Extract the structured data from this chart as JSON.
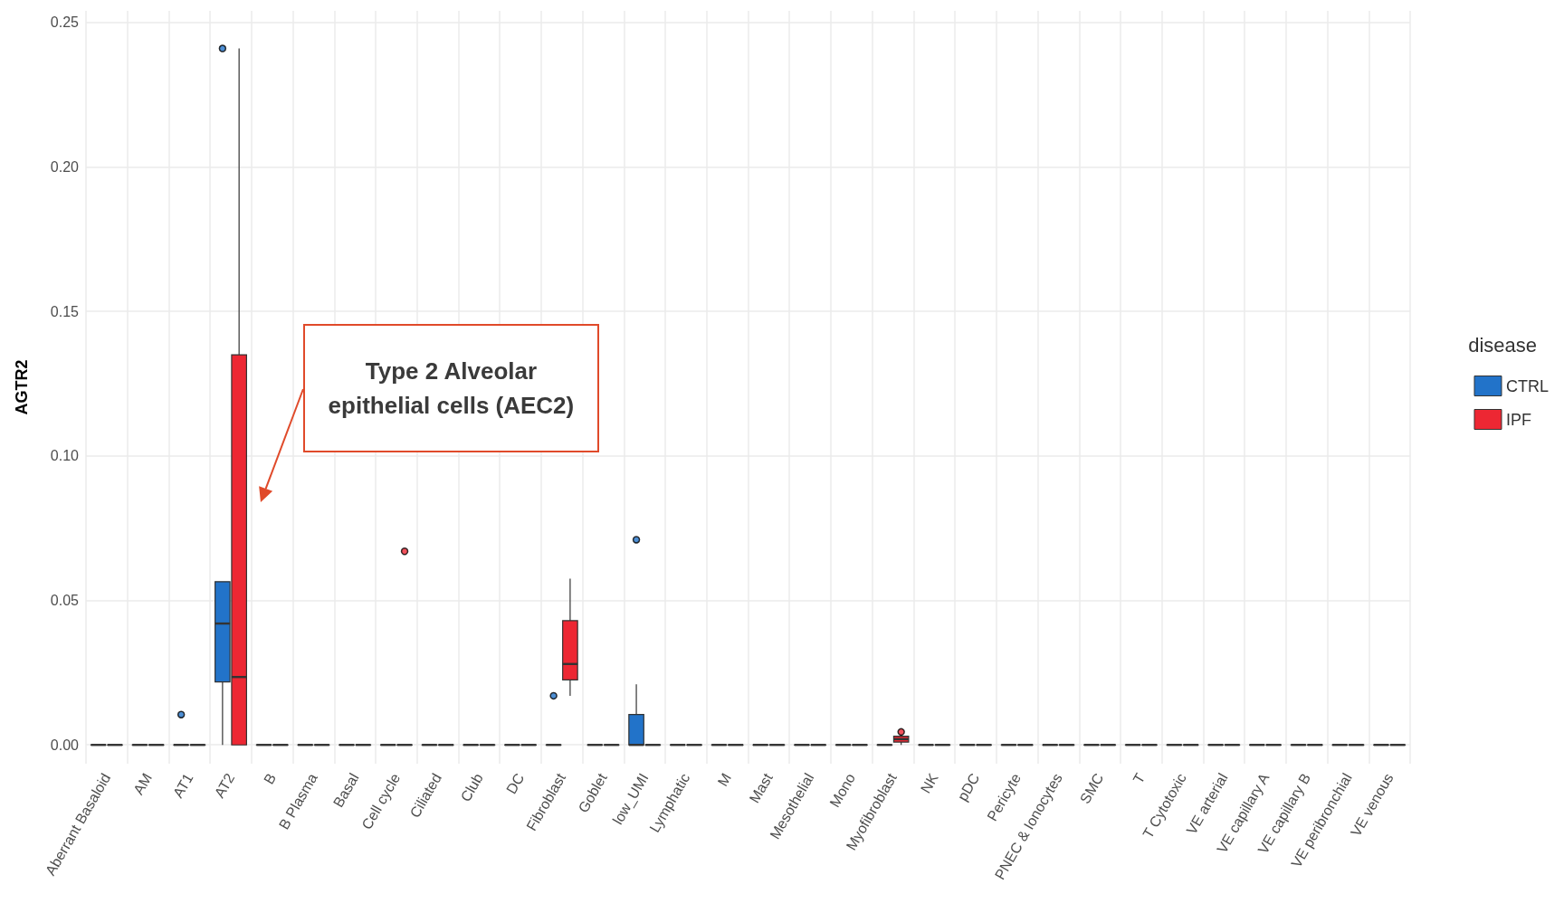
{
  "chart_data": {
    "type": "box",
    "ylabel": "AGTR2",
    "legend_title": "disease",
    "legend": "right",
    "grid": true,
    "categories": [
      "Aberrant Basaloid",
      "AM",
      "AT1",
      "AT2",
      "B",
      "B Plasma",
      "Basal",
      "Cell cycle",
      "Ciliated",
      "Club",
      "DC",
      "Fibroblast",
      "Goblet",
      "low_UMI",
      "Lymphatic",
      "M",
      "Mast",
      "Mesothelial",
      "Mono",
      "Myofibroblast",
      "NK",
      "pDC",
      "Pericyte",
      "PNEC & Ionocytes",
      "SMC",
      "T",
      "T Cytotoxic",
      "VE arterial",
      "VE capillary A",
      "VE capillary B",
      "VE peribronchial",
      "VE venous"
    ],
    "ylim": [
      -0.0065,
      0.254
    ],
    "yticks": [
      {
        "value": 0,
        "label": "0.00"
      },
      {
        "value": 0.05,
        "label": "0.05"
      },
      {
        "value": 0.1,
        "label": "0.10"
      },
      {
        "value": 0.15,
        "label": "0.15"
      },
      {
        "value": 0.2,
        "label": "0.20"
      },
      {
        "value": 0.25,
        "label": "0.25"
      }
    ],
    "annotations": [
      "Type 2 Alveolar epithelial cells (AEC2)"
    ],
    "series": [
      {
        "name": "CTRL",
        "color": "#2273c9",
        "boxes": [
          {
            "low": 0,
            "q1": 0,
            "median": 0,
            "q3": 0,
            "high": 0
          },
          {
            "low": 0,
            "q1": 0,
            "median": 0,
            "q3": 0,
            "high": 0
          },
          {
            "low": 0,
            "q1": 0,
            "median": 0,
            "q3": 0,
            "high": 0,
            "outliers": [
              0.0105
            ]
          },
          {
            "low": 0,
            "q1": 0.0218,
            "median": 0.042,
            "q3": 0.0565,
            "high": 0.0565,
            "outliers": [
              0.241
            ]
          },
          {
            "low": 0,
            "q1": 0,
            "median": 0,
            "q3": 0,
            "high": 0
          },
          {
            "low": 0,
            "q1": 0,
            "median": 0,
            "q3": 0,
            "high": 0
          },
          {
            "low": 0,
            "q1": 0,
            "median": 0,
            "q3": 0,
            "high": 0
          },
          {
            "low": 0,
            "q1": 0,
            "median": 0,
            "q3": 0,
            "high": 0
          },
          {
            "low": 0,
            "q1": 0,
            "median": 0,
            "q3": 0,
            "high": 0
          },
          {
            "low": 0,
            "q1": 0,
            "median": 0,
            "q3": 0,
            "high": 0
          },
          {
            "low": 0,
            "q1": 0,
            "median": 0,
            "q3": 0,
            "high": 0
          },
          {
            "low": 0,
            "q1": 0,
            "median": 0,
            "q3": 0,
            "high": 0,
            "outliers": [
              0.017
            ]
          },
          {
            "low": 0,
            "q1": 0,
            "median": 0,
            "q3": 0,
            "high": 0
          },
          {
            "low": 0,
            "q1": 0,
            "median": 0,
            "q3": 0.0105,
            "high": 0.021,
            "outliers": [
              0.071
            ]
          },
          {
            "low": 0,
            "q1": 0,
            "median": 0,
            "q3": 0,
            "high": 0
          },
          {
            "low": 0,
            "q1": 0,
            "median": 0,
            "q3": 0,
            "high": 0
          },
          {
            "low": 0,
            "q1": 0,
            "median": 0,
            "q3": 0,
            "high": 0
          },
          {
            "low": 0,
            "q1": 0,
            "median": 0,
            "q3": 0,
            "high": 0
          },
          {
            "low": 0,
            "q1": 0,
            "median": 0,
            "q3": 0,
            "high": 0
          },
          {
            "low": 0,
            "q1": 0,
            "median": 0,
            "q3": 0,
            "high": 0
          },
          {
            "low": 0,
            "q1": 0,
            "median": 0,
            "q3": 0,
            "high": 0
          },
          {
            "low": 0,
            "q1": 0,
            "median": 0,
            "q3": 0,
            "high": 0
          },
          {
            "low": 0,
            "q1": 0,
            "median": 0,
            "q3": 0,
            "high": 0
          },
          {
            "low": 0,
            "q1": 0,
            "median": 0,
            "q3": 0,
            "high": 0
          },
          {
            "low": 0,
            "q1": 0,
            "median": 0,
            "q3": 0,
            "high": 0
          },
          {
            "low": 0,
            "q1": 0,
            "median": 0,
            "q3": 0,
            "high": 0
          },
          {
            "low": 0,
            "q1": 0,
            "median": 0,
            "q3": 0,
            "high": 0
          },
          {
            "low": 0,
            "q1": 0,
            "median": 0,
            "q3": 0,
            "high": 0
          },
          {
            "low": 0,
            "q1": 0,
            "median": 0,
            "q3": 0,
            "high": 0
          },
          {
            "low": 0,
            "q1": 0,
            "median": 0,
            "q3": 0,
            "high": 0
          },
          {
            "low": 0,
            "q1": 0,
            "median": 0,
            "q3": 0,
            "high": 0
          },
          {
            "low": 0,
            "q1": 0,
            "median": 0,
            "q3": 0,
            "high": 0
          }
        ]
      },
      {
        "name": "IPF",
        "color": "#ed2733",
        "boxes": [
          {
            "low": 0,
            "q1": 0,
            "median": 0,
            "q3": 0,
            "high": 0
          },
          {
            "low": 0,
            "q1": 0,
            "median": 0,
            "q3": 0,
            "high": 0
          },
          {
            "low": 0,
            "q1": 0,
            "median": 0,
            "q3": 0,
            "high": 0
          },
          {
            "low": 0,
            "q1": 0,
            "median": 0.0235,
            "q3": 0.135,
            "high": 0.241
          },
          {
            "low": 0,
            "q1": 0,
            "median": 0,
            "q3": 0,
            "high": 0
          },
          {
            "low": 0,
            "q1": 0,
            "median": 0,
            "q3": 0,
            "high": 0
          },
          {
            "low": 0,
            "q1": 0,
            "median": 0,
            "q3": 0,
            "high": 0
          },
          {
            "low": 0,
            "q1": 0,
            "median": 0,
            "q3": 0,
            "high": 0,
            "outliers": [
              0.067
            ]
          },
          {
            "low": 0,
            "q1": 0,
            "median": 0,
            "q3": 0,
            "high": 0
          },
          {
            "low": 0,
            "q1": 0,
            "median": 0,
            "q3": 0,
            "high": 0
          },
          {
            "low": 0,
            "q1": 0,
            "median": 0,
            "q3": 0,
            "high": 0
          },
          {
            "low": 0.017,
            "q1": 0.0225,
            "median": 0.028,
            "q3": 0.043,
            "high": 0.0575
          },
          {
            "low": 0,
            "q1": 0,
            "median": 0,
            "q3": 0,
            "high": 0
          },
          {
            "low": 0,
            "q1": 0,
            "median": 0,
            "q3": 0,
            "high": 0
          },
          {
            "low": 0,
            "q1": 0,
            "median": 0,
            "q3": 0,
            "high": 0
          },
          {
            "low": 0,
            "q1": 0,
            "median": 0,
            "q3": 0,
            "high": 0
          },
          {
            "low": 0,
            "q1": 0,
            "median": 0,
            "q3": 0,
            "high": 0
          },
          {
            "low": 0,
            "q1": 0,
            "median": 0,
            "q3": 0,
            "high": 0
          },
          {
            "low": 0,
            "q1": 0,
            "median": 0,
            "q3": 0,
            "high": 0
          },
          {
            "low": 0,
            "q1": 0.001,
            "median": 0.002,
            "q3": 0.003,
            "high": 0.0035,
            "outliers": [
              0.0045
            ]
          },
          {
            "low": 0,
            "q1": 0,
            "median": 0,
            "q3": 0,
            "high": 0
          },
          {
            "low": 0,
            "q1": 0,
            "median": 0,
            "q3": 0,
            "high": 0
          },
          {
            "low": 0,
            "q1": 0,
            "median": 0,
            "q3": 0,
            "high": 0
          },
          {
            "low": 0,
            "q1": 0,
            "median": 0,
            "q3": 0,
            "high": 0
          },
          {
            "low": 0,
            "q1": 0,
            "median": 0,
            "q3": 0,
            "high": 0
          },
          {
            "low": 0,
            "q1": 0,
            "median": 0,
            "q3": 0,
            "high": 0
          },
          {
            "low": 0,
            "q1": 0,
            "median": 0,
            "q3": 0,
            "high": 0
          },
          {
            "low": 0,
            "q1": 0,
            "median": 0,
            "q3": 0,
            "high": 0
          },
          {
            "low": 0,
            "q1": 0,
            "median": 0,
            "q3": 0,
            "high": 0
          },
          {
            "low": 0,
            "q1": 0,
            "median": 0,
            "q3": 0,
            "high": 0
          },
          {
            "low": 0,
            "q1": 0,
            "median": 0,
            "q3": 0,
            "high": 0
          },
          {
            "low": 0,
            "q1": 0,
            "median": 0,
            "q3": 0,
            "high": 0
          }
        ]
      }
    ]
  }
}
